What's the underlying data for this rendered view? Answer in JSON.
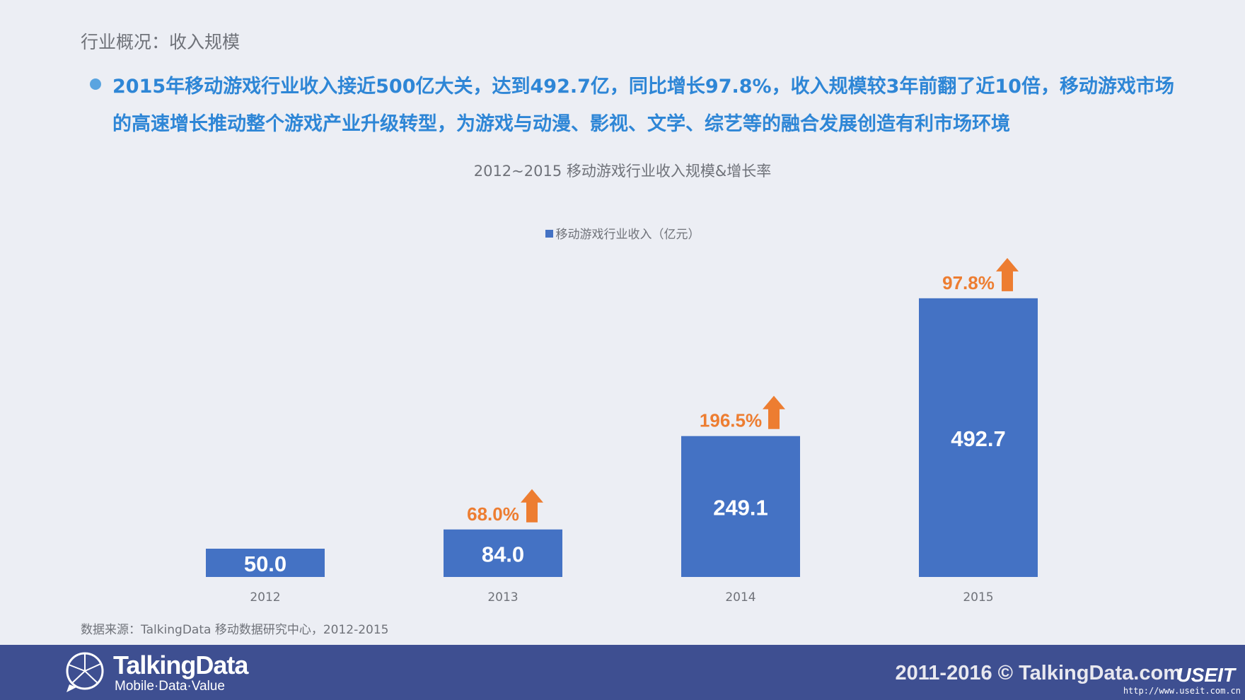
{
  "section_title": "行业概况：收入规模",
  "headline": "2015年移动游戏行业收入接近500亿大关，达到492.7亿，同比增长97.8%，收入规模较3年前翻了近10倍，移动游戏市场的高速增长推动整个游戏产业升级转型，为游戏与动漫、影视、文学、综艺等的融合发展创造有利市场环境",
  "source_note": "数据来源：TalkingData 移动数据研究中心，2012-2015",
  "footer": {
    "logo_name": "TalkingData",
    "logo_tagline": "Mobile·Data·Value",
    "copyright": "2011-2016 © TalkingData.com",
    "watermark": "USEIT",
    "watermark_url": "http://www.useit.com.cn"
  },
  "colors": {
    "bar": "#4472c4",
    "growth": "#ed7d31",
    "headline": "#2e86d6",
    "footer_bg": "#3e4f91"
  },
  "chart_data": {
    "type": "bar",
    "title": "2012~2015 移动游戏行业收入规模&增长率",
    "categories": [
      "2012",
      "2013",
      "2014",
      "2015"
    ],
    "series": [
      {
        "name": "移动游戏行业收入（亿元）",
        "values": [
          50.0,
          84.0,
          249.1,
          492.7
        ],
        "labels": [
          "50.0",
          "84.0",
          "249.1",
          "492.7"
        ]
      }
    ],
    "growth_labels": [
      "",
      "68.0%",
      "196.5%",
      "97.8%"
    ],
    "growth_icon": "up-arrow-icon",
    "ylim": [
      0,
      600
    ],
    "grid": false,
    "legend_position": "top-center"
  }
}
